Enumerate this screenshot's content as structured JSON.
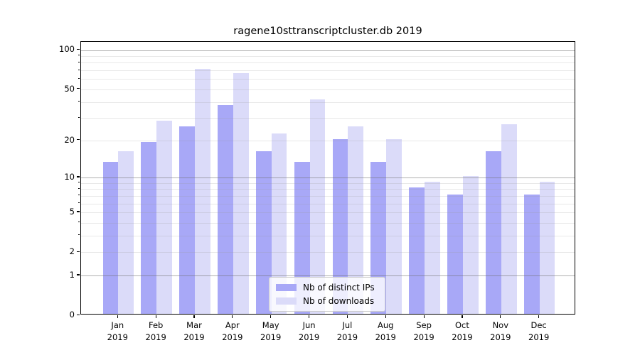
{
  "title": "ragene10sttranscriptcluster.db 2019",
  "chart_data": {
    "type": "bar",
    "title": "ragene10sttranscriptcluster.db 2019",
    "categories": [
      "Jan",
      "Feb",
      "Mar",
      "Apr",
      "May",
      "Jun",
      "Jul",
      "Aug",
      "Sep",
      "Oct",
      "Nov",
      "Dec"
    ],
    "category_year": "2019",
    "series": [
      {
        "name": "Nb of distinct IPs",
        "color": "#a8a8f7",
        "values": [
          13,
          19,
          25,
          37,
          16,
          13,
          20,
          13,
          8,
          7,
          16,
          7
        ]
      },
      {
        "name": "Nb of downloads",
        "color": "#dbdbf9",
        "values": [
          16,
          28,
          70,
          65,
          22,
          41,
          25,
          20,
          9,
          10,
          26,
          9
        ]
      }
    ],
    "xlabel": "",
    "ylabel": "",
    "yscale": "log1p",
    "ylim": [
      0,
      115
    ],
    "ytick_values": [
      0,
      1,
      2,
      5,
      10,
      20,
      50,
      100
    ],
    "ytick_labels": [
      "0",
      "1",
      "2",
      "5",
      "10",
      "20",
      "50",
      "100"
    ],
    "grid": {
      "major_values": [
        1,
        10,
        100
      ],
      "minor_values": [
        2,
        3,
        4,
        5,
        6,
        7,
        8,
        9,
        20,
        30,
        40,
        50,
        60,
        70,
        80,
        90
      ],
      "enabled": true
    },
    "legend": {
      "position": "lower center",
      "entries": [
        "Nb of distinct IPs",
        "Nb of downloads"
      ]
    }
  },
  "colors": {
    "distinct_ips": "#a8a8f7",
    "downloads": "#dbdbf9",
    "grid_major": "#b5b5b5",
    "grid_minor": "#e9e9e9",
    "spine": "#000000",
    "background": "#ffffff"
  }
}
